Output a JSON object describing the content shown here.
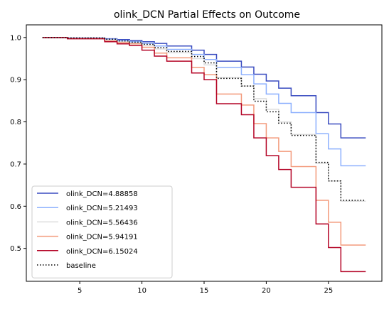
{
  "chart_data": {
    "type": "line",
    "step": true,
    "title": "olink_DCN Partial Effects on Outcome",
    "xlabel": "",
    "ylabel": "",
    "xlim": [
      0.7,
      29.3
    ],
    "ylim": [
      0.422,
      1.03
    ],
    "xticks": [
      5,
      10,
      15,
      20,
      25
    ],
    "yticks": [
      0.5,
      0.6,
      0.7,
      0.8,
      0.9,
      1.0
    ],
    "ytick_labels": [
      "0.5",
      "0.6",
      "0.7",
      "0.8",
      "0.9",
      "1.0"
    ],
    "grid": false,
    "legend_position": "lower-left",
    "series": [
      {
        "name": "olink_DCN=4.88858",
        "color": "#3a4cc0",
        "dash": "solid",
        "points": [
          [
            2,
            1.0
          ],
          [
            4,
            0.999
          ],
          [
            7,
            0.997
          ],
          [
            8,
            0.995
          ],
          [
            9,
            0.993
          ],
          [
            10,
            0.99
          ],
          [
            11,
            0.986
          ],
          [
            12,
            0.98
          ],
          [
            14,
            0.97
          ],
          [
            15,
            0.96
          ],
          [
            16,
            0.944
          ],
          [
            18,
            0.93
          ],
          [
            19,
            0.913
          ],
          [
            20,
            0.897
          ],
          [
            21,
            0.88
          ],
          [
            22,
            0.862
          ],
          [
            24,
            0.822
          ],
          [
            25,
            0.795
          ],
          [
            26,
            0.762
          ],
          [
            28,
            0.762
          ]
        ]
      },
      {
        "name": "olink_DCN=5.21493",
        "color": "#8db0fe",
        "dash": "solid",
        "points": [
          [
            2,
            1.0
          ],
          [
            4,
            0.999
          ],
          [
            7,
            0.996
          ],
          [
            8,
            0.993
          ],
          [
            9,
            0.99
          ],
          [
            10,
            0.986
          ],
          [
            11,
            0.98
          ],
          [
            12,
            0.972
          ],
          [
            14,
            0.96
          ],
          [
            15,
            0.948
          ],
          [
            16,
            0.929
          ],
          [
            18,
            0.912
          ],
          [
            19,
            0.89
          ],
          [
            20,
            0.866
          ],
          [
            21,
            0.844
          ],
          [
            22,
            0.822
          ],
          [
            24,
            0.772
          ],
          [
            25,
            0.736
          ],
          [
            26,
            0.696
          ],
          [
            28,
            0.696
          ]
        ]
      },
      {
        "name": "olink_DCN=5.56436",
        "color": "#dddddd",
        "dash": "solid",
        "points": [
          [
            2,
            1.0
          ],
          [
            4,
            0.998
          ],
          [
            7,
            0.994
          ],
          [
            8,
            0.99
          ],
          [
            9,
            0.987
          ],
          [
            10,
            0.981
          ],
          [
            11,
            0.973
          ],
          [
            12,
            0.964
          ],
          [
            14,
            0.95
          ],
          [
            15,
            0.935
          ],
          [
            16,
            0.905
          ],
          [
            18,
            0.885
          ],
          [
            19,
            0.855
          ],
          [
            20,
            0.83
          ],
          [
            21,
            0.8
          ],
          [
            22,
            0.77
          ],
          [
            24,
            0.702
          ],
          [
            25,
            0.66
          ],
          [
            26,
            0.612
          ],
          [
            28,
            0.612
          ]
        ]
      },
      {
        "name": "olink_DCN=5.94191",
        "color": "#f39a7b",
        "dash": "solid",
        "points": [
          [
            2,
            1.0
          ],
          [
            4,
            0.998
          ],
          [
            7,
            0.992
          ],
          [
            8,
            0.988
          ],
          [
            9,
            0.985
          ],
          [
            10,
            0.977
          ],
          [
            11,
            0.963
          ],
          [
            12,
            0.952
          ],
          [
            14,
            0.929
          ],
          [
            15,
            0.912
          ],
          [
            16,
            0.866
          ],
          [
            18,
            0.84
          ],
          [
            19,
            0.796
          ],
          [
            20,
            0.762
          ],
          [
            21,
            0.73
          ],
          [
            22,
            0.694
          ],
          [
            24,
            0.614
          ],
          [
            25,
            0.562
          ],
          [
            26,
            0.508
          ],
          [
            28,
            0.508
          ]
        ]
      },
      {
        "name": "olink_DCN=6.15024",
        "color": "#b40426",
        "dash": "solid",
        "points": [
          [
            2,
            1.0
          ],
          [
            4,
            0.997
          ],
          [
            7,
            0.99
          ],
          [
            8,
            0.985
          ],
          [
            9,
            0.981
          ],
          [
            10,
            0.97
          ],
          [
            11,
            0.956
          ],
          [
            12,
            0.944
          ],
          [
            14,
            0.916
          ],
          [
            15,
            0.9
          ],
          [
            16,
            0.843
          ],
          [
            18,
            0.817
          ],
          [
            19,
            0.762
          ],
          [
            20,
            0.72
          ],
          [
            21,
            0.687
          ],
          [
            22,
            0.645
          ],
          [
            24,
            0.558
          ],
          [
            25,
            0.502
          ],
          [
            26,
            0.445
          ],
          [
            28,
            0.445
          ]
        ]
      },
      {
        "name": "baseline",
        "color": "#000000",
        "dash": "dotted",
        "points": [
          [
            2,
            1.0
          ],
          [
            4,
            0.999
          ],
          [
            7,
            0.996
          ],
          [
            8,
            0.992
          ],
          [
            9,
            0.989
          ],
          [
            10,
            0.984
          ],
          [
            11,
            0.976
          ],
          [
            12,
            0.967
          ],
          [
            14,
            0.955
          ],
          [
            15,
            0.94
          ],
          [
            16,
            0.903
          ],
          [
            18,
            0.885
          ],
          [
            19,
            0.849
          ],
          [
            20,
            0.824
          ],
          [
            21,
            0.797
          ],
          [
            22,
            0.768
          ],
          [
            24,
            0.704
          ],
          [
            25,
            0.66
          ],
          [
            26,
            0.614
          ],
          [
            28,
            0.614
          ]
        ]
      }
    ]
  }
}
